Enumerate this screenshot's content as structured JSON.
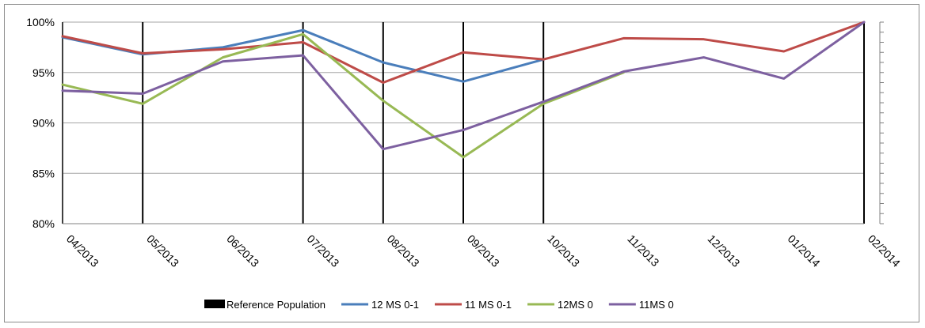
{
  "chart_data": {
    "type": "line",
    "categories": [
      "04/2013",
      "05/2013",
      "06/2013",
      "07/2013",
      "08/2013",
      "09/2013",
      "10/2013",
      "11/2013",
      "12/2013",
      "01/2014",
      "02/2014"
    ],
    "ylim": [
      80,
      100
    ],
    "yticks": [
      80,
      85,
      90,
      95,
      100
    ],
    "ytick_labels": [
      "80%",
      "85%",
      "90%",
      "95%",
      "100%"
    ],
    "grid": true,
    "legend_placement": "bottom",
    "reference_population": {
      "name": "Reference Population",
      "color": "#000000",
      "present": [
        true,
        true,
        false,
        true,
        true,
        true,
        true,
        false,
        false,
        false,
        true
      ]
    },
    "series": [
      {
        "name": "12 MS 0-1",
        "color": "#4a7ebb",
        "values": [
          98.5,
          96.8,
          97.5,
          99.2,
          96.0,
          94.1,
          96.3,
          null,
          null,
          null,
          null
        ]
      },
      {
        "name": "11 MS 0-1",
        "color": "#be4b48",
        "values": [
          98.6,
          96.9,
          97.3,
          98.0,
          94.0,
          97.0,
          96.3,
          98.4,
          98.3,
          97.1,
          100.0
        ]
      },
      {
        "name": "12MS 0",
        "color": "#98b954",
        "values": [
          93.8,
          91.9,
          96.5,
          98.8,
          92.2,
          86.6,
          91.9,
          95.0,
          null,
          null,
          null
        ]
      },
      {
        "name": "11MS 0",
        "color": "#7d60a0",
        "values": [
          93.2,
          92.9,
          96.1,
          96.7,
          87.4,
          89.3,
          92.1,
          95.1,
          96.5,
          94.4,
          100.0
        ]
      }
    ]
  }
}
